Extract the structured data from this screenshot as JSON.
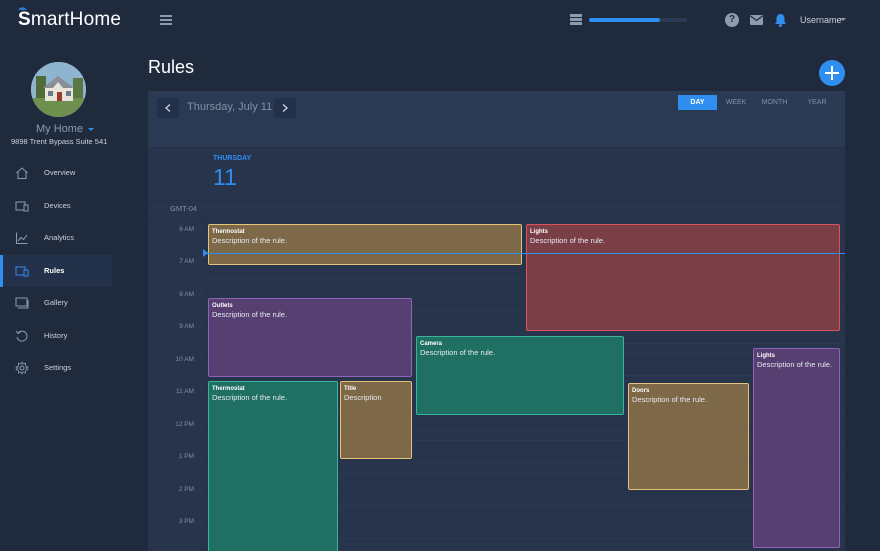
{
  "app": {
    "logo_bold": "S",
    "logo_rest": "martHome",
    "username": "Username",
    "progress_percent": 72
  },
  "sidebar": {
    "home_name": "My Home",
    "home_address": "9898 Trent Bypass Suite 541",
    "items": [
      {
        "label": "Overview",
        "icon": "home-icon",
        "active": false
      },
      {
        "label": "Devices",
        "icon": "devices-icon",
        "active": false
      },
      {
        "label": "Analytics",
        "icon": "chart-icon",
        "active": false
      },
      {
        "label": "Rules",
        "icon": "rules-icon",
        "active": true
      },
      {
        "label": "Gallery",
        "icon": "gallery-icon",
        "active": false
      },
      {
        "label": "History",
        "icon": "history-icon",
        "active": false
      },
      {
        "label": "Settings",
        "icon": "gear-icon",
        "active": false
      }
    ]
  },
  "main": {
    "title": "Rules"
  },
  "calendar": {
    "date_label": "Thursday, July 11",
    "views": [
      {
        "label": "DAY",
        "active": true
      },
      {
        "label": "WEEK",
        "active": false
      },
      {
        "label": "MONTH",
        "active": false
      },
      {
        "label": "YEAR",
        "active": false
      }
    ],
    "day_name": "THURSDAY",
    "day_number": "11",
    "timezone": "GMT-04",
    "hours": [
      "6 AM",
      "7 AM",
      "8 AM",
      "9 AM",
      "10 AM",
      "11 AM",
      "12 PM",
      "1 PM",
      "2 PM",
      "3 PM"
    ],
    "events": [
      {
        "title": "Thermostat",
        "description": "Description of the rule.",
        "color": "#7d6848"
      },
      {
        "title": "Lights",
        "description": "Description of the rule.",
        "color": "#7a3e46"
      },
      {
        "title": "Outlets",
        "description": "Description of the rule.",
        "color": "#573f72"
      },
      {
        "title": "Camera",
        "description": "Description of the rule.",
        "color": "#1f6f63"
      },
      {
        "title": "Lights",
        "description": "Description of the rule.",
        "color": "#573f72"
      },
      {
        "title": "Thermostat",
        "description": "Description of the rule.",
        "color": "#1f6f63"
      },
      {
        "title": "Title",
        "description": "Description",
        "color": "#7d6848"
      },
      {
        "title": "Doors",
        "description": "Description of the rule.",
        "color": "#7d6848"
      }
    ]
  },
  "colors": {
    "accent": "#2f8ef0",
    "background": "#1f2a3d",
    "panel": "#27344b"
  }
}
